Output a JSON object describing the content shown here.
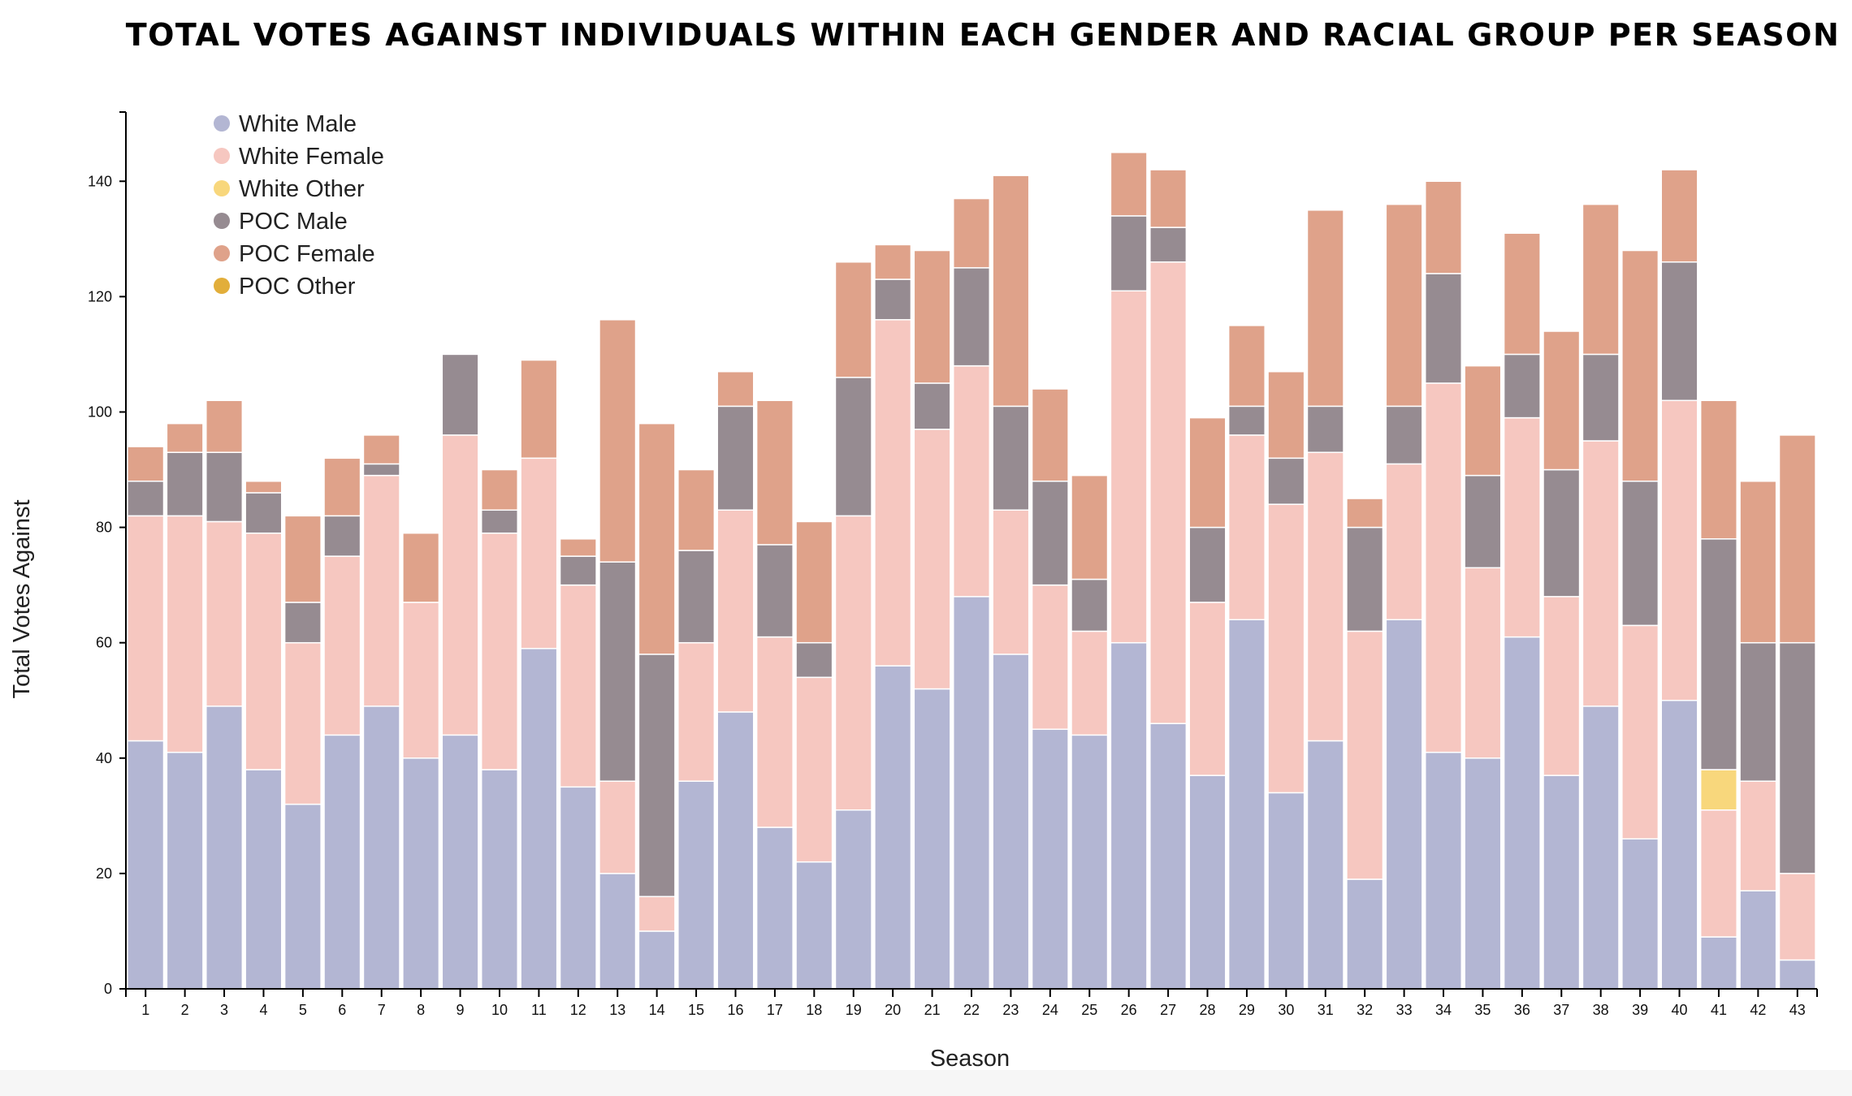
{
  "chart_data": {
    "type": "bar",
    "stacked": true,
    "title": "TOTAL VOTES AGAINST INDIVIDUALS WITHIN EACH GENDER AND RACIAL GROUP PER SEASON",
    "xlabel": "Season",
    "ylabel": "Total Votes Against",
    "ylim": [
      0,
      152
    ],
    "yticks": [
      0,
      20,
      40,
      60,
      80,
      100,
      120,
      140
    ],
    "grid": false,
    "legend_position": "top-left",
    "categories": [
      "1",
      "2",
      "3",
      "4",
      "5",
      "6",
      "7",
      "8",
      "9",
      "10",
      "11",
      "12",
      "13",
      "14",
      "15",
      "16",
      "17",
      "18",
      "19",
      "20",
      "21",
      "22",
      "23",
      "24",
      "25",
      "26",
      "27",
      "28",
      "29",
      "30",
      "31",
      "32",
      "33",
      "34",
      "35",
      "36",
      "37",
      "38",
      "39",
      "40",
      "41",
      "42",
      "43"
    ],
    "series": [
      {
        "name": "White Male",
        "color": "#b3b6d3",
        "values": [
          43,
          41,
          49,
          38,
          32,
          44,
          49,
          40,
          44,
          38,
          59,
          35,
          20,
          10,
          36,
          48,
          28,
          22,
          31,
          56,
          52,
          68,
          58,
          45,
          44,
          60,
          46,
          37,
          64,
          34,
          43,
          19,
          64,
          41,
          40,
          61,
          37,
          49,
          26,
          50,
          9,
          17,
          5
        ]
      },
      {
        "name": "White Female",
        "color": "#f6c7c0",
        "values": [
          39,
          41,
          32,
          41,
          28,
          31,
          40,
          27,
          52,
          41,
          33,
          35,
          16,
          6,
          24,
          35,
          33,
          32,
          51,
          60,
          45,
          40,
          25,
          25,
          18,
          61,
          80,
          30,
          32,
          50,
          50,
          43,
          27,
          64,
          33,
          38,
          31,
          46,
          37,
          52,
          22,
          19,
          15
        ]
      },
      {
        "name": "White Other",
        "color": "#f8d77c",
        "values": [
          0,
          0,
          0,
          0,
          0,
          0,
          0,
          0,
          0,
          0,
          0,
          0,
          0,
          0,
          0,
          0,
          0,
          0,
          0,
          0,
          0,
          0,
          0,
          0,
          0,
          0,
          0,
          0,
          0,
          0,
          0,
          0,
          0,
          0,
          0,
          0,
          0,
          0,
          0,
          0,
          7,
          0,
          0
        ]
      },
      {
        "name": "POC Male",
        "color": "#968b91",
        "values": [
          6,
          11,
          12,
          7,
          7,
          7,
          2,
          0,
          14,
          4,
          0,
          5,
          38,
          42,
          16,
          18,
          16,
          6,
          24,
          7,
          8,
          17,
          18,
          18,
          9,
          13,
          6,
          13,
          5,
          8,
          8,
          18,
          10,
          19,
          16,
          11,
          22,
          15,
          25,
          24,
          40,
          24,
          40
        ]
      },
      {
        "name": "POC Female",
        "color": "#dfa28a",
        "values": [
          6,
          5,
          9,
          2,
          15,
          10,
          5,
          12,
          0,
          7,
          17,
          3,
          42,
          40,
          14,
          6,
          25,
          21,
          20,
          6,
          23,
          12,
          40,
          16,
          18,
          11,
          10,
          19,
          14,
          15,
          34,
          5,
          35,
          16,
          19,
          21,
          24,
          26,
          40,
          16,
          24,
          28,
          36
        ]
      },
      {
        "name": "POC Other",
        "color": "#e2ae3a",
        "values": [
          0,
          0,
          0,
          0,
          0,
          0,
          0,
          0,
          0,
          0,
          0,
          0,
          0,
          0,
          0,
          0,
          0,
          0,
          0,
          0,
          0,
          0,
          0,
          0,
          0,
          0,
          0,
          0,
          0,
          0,
          0,
          0,
          0,
          0,
          0,
          0,
          0,
          0,
          0,
          0,
          0,
          0,
          0
        ]
      }
    ]
  }
}
